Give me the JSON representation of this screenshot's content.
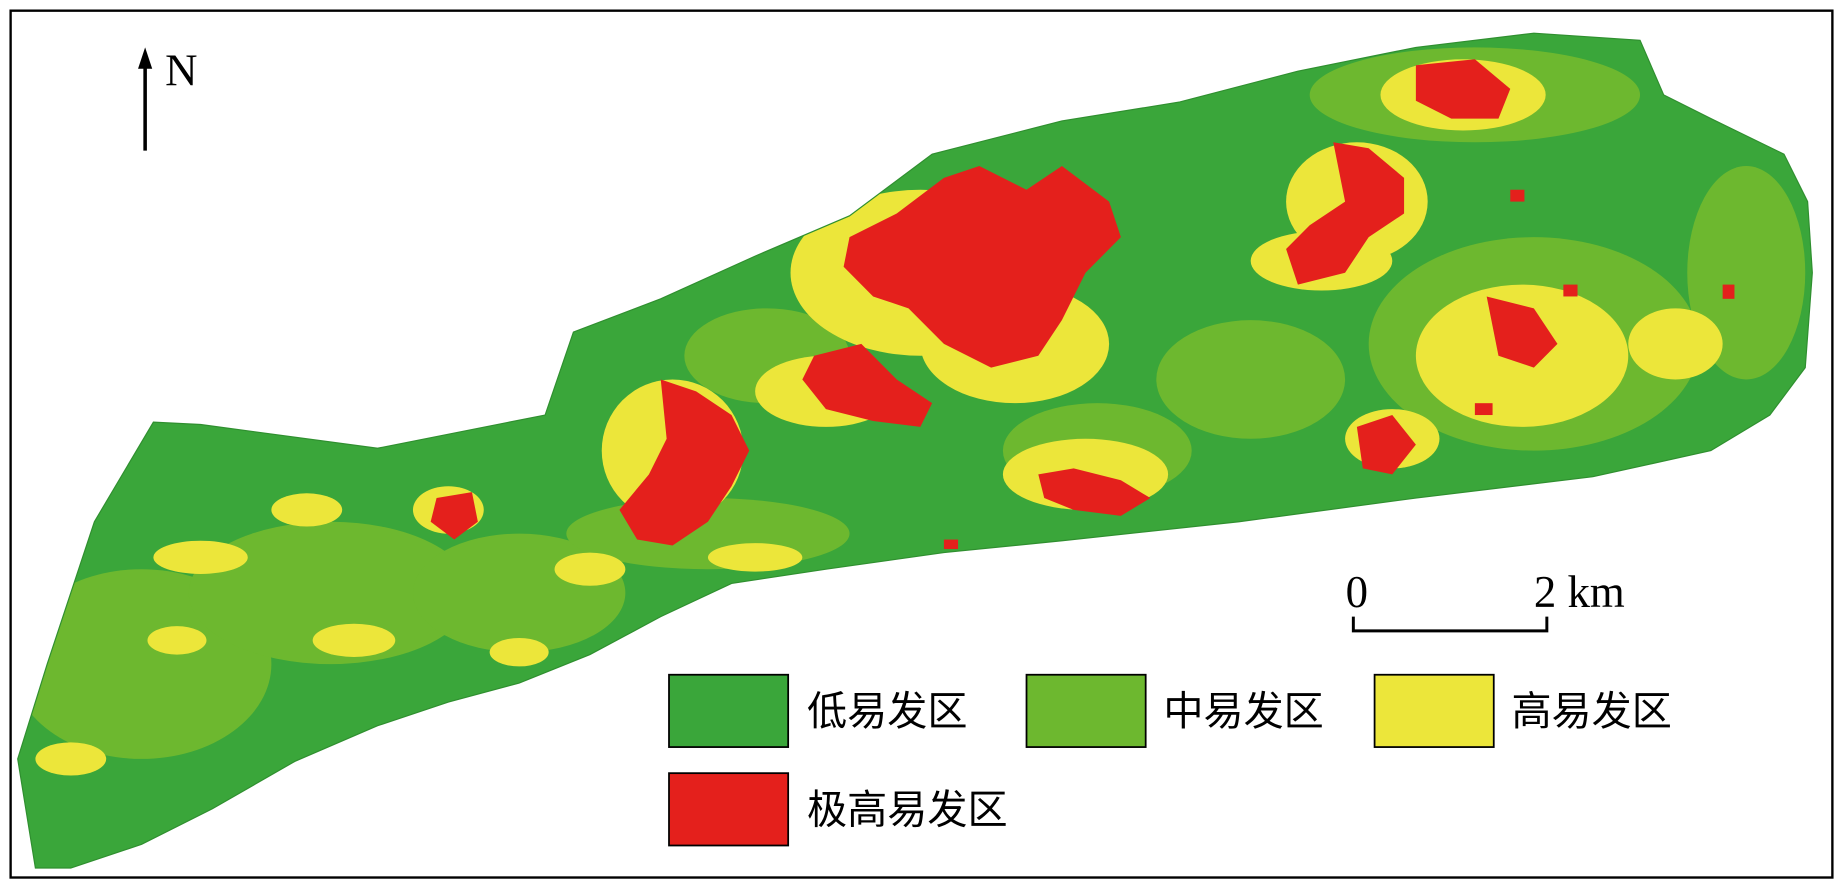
{
  "map": {
    "north_label": "N",
    "scale_bar": {
      "start_label": "0",
      "end_label": "2 km"
    },
    "legend": [
      {
        "label": "低易发区",
        "color": "#3aa63a"
      },
      {
        "label": "中易发区",
        "color": "#6db82f"
      },
      {
        "label": "高易发区",
        "color": "#ece63a"
      },
      {
        "label": "极高易发区",
        "color": "#e4201c"
      }
    ]
  }
}
